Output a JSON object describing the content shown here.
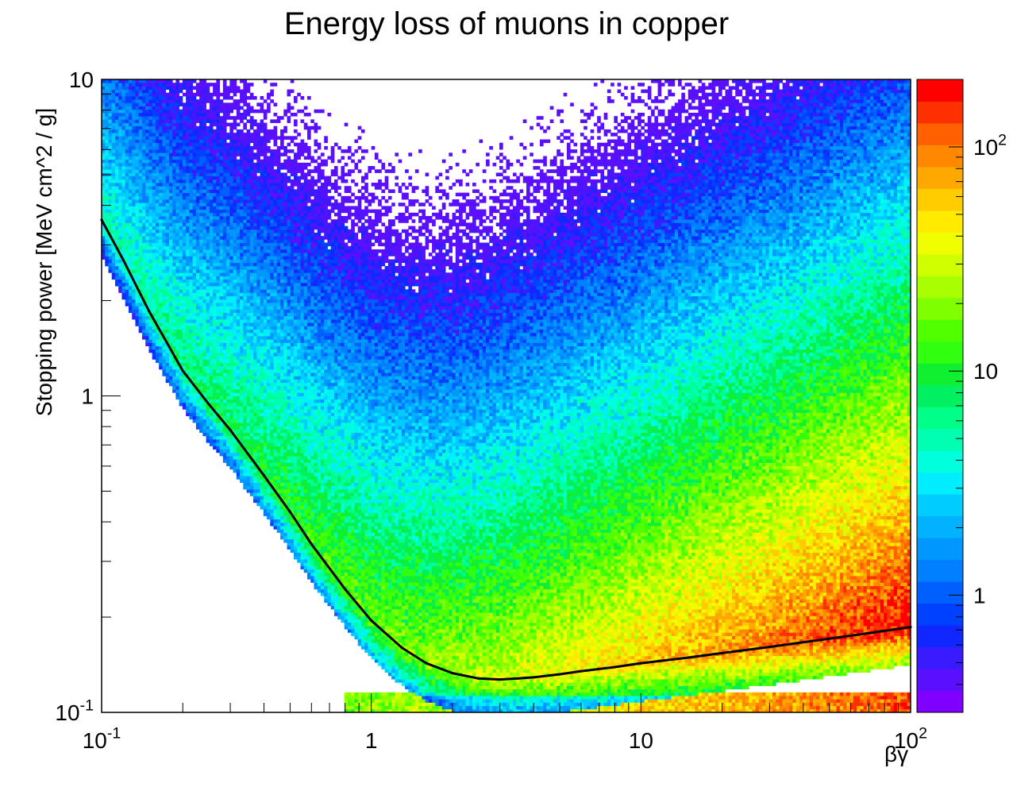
{
  "chart_data": {
    "type": "heatmap",
    "title": "Energy loss of muons in copper",
    "xlabel": "βγ",
    "ylabel": "Stopping power [MeV cm^2 / g]",
    "x_scale": "log",
    "y_scale": "log",
    "z_scale": "log",
    "xlim": [
      0.1,
      100
    ],
    "ylim": [
      0.1,
      10
    ],
    "zlim": [
      0.3,
      200
    ],
    "x_ticks": [
      {
        "value": 0.1,
        "base": "10",
        "exp": "-1"
      },
      {
        "value": 1,
        "base": "1",
        "exp": ""
      },
      {
        "value": 10,
        "base": "10",
        "exp": ""
      },
      {
        "value": 100,
        "base": "10",
        "exp": "2"
      }
    ],
    "y_ticks": [
      {
        "value": 0.1,
        "base": "10",
        "exp": "-1"
      },
      {
        "value": 1,
        "base": "1",
        "exp": ""
      },
      {
        "value": 10,
        "base": "10",
        "exp": ""
      }
    ],
    "z_ticks": [
      {
        "value": 1,
        "base": "1",
        "exp": ""
      },
      {
        "value": 10,
        "base": "10",
        "exp": ""
      },
      {
        "value": 100,
        "base": "10",
        "exp": "2"
      }
    ],
    "palette": [
      "#7f00ff",
      "#5a10ff",
      "#3a1aff",
      "#1028ff",
      "#0040ff",
      "#0060ff",
      "#0080ff",
      "#0098ff",
      "#00b2ff",
      "#00ccff",
      "#00eeff",
      "#00ffdd",
      "#00ffb0",
      "#00ff88",
      "#00f060",
      "#10f030",
      "#30ff10",
      "#50ff00",
      "#80ff00",
      "#a8ff00",
      "#d0ff00",
      "#f0ff00",
      "#ffea00",
      "#ffcc00",
      "#ffa800",
      "#ff8800",
      "#ff6000",
      "#ff3000",
      "#ff0000"
    ],
    "curve": {
      "name": "",
      "x": [
        0.1,
        0.12,
        0.15,
        0.2,
        0.25,
        0.3,
        0.4,
        0.5,
        0.6,
        0.8,
        1.0,
        1.3,
        1.6,
        2.0,
        2.5,
        3.0,
        3.5,
        4.0,
        5,
        6,
        8,
        10,
        15,
        20,
        30,
        50,
        70,
        100
      ],
      "y": [
        3.6,
        2.7,
        1.85,
        1.2,
        0.94,
        0.78,
        0.56,
        0.43,
        0.34,
        0.245,
        0.195,
        0.16,
        0.143,
        0.133,
        0.128,
        0.127,
        0.128,
        0.129,
        0.132,
        0.135,
        0.139,
        0.143,
        0.149,
        0.154,
        0.161,
        0.171,
        0.178,
        0.186
      ]
    }
  }
}
